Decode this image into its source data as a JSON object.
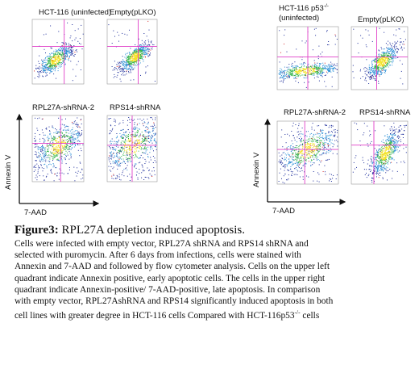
{
  "left_figure": {
    "panels": [
      "HCT-116 (uninfected)",
      "Empty(pLKO)",
      "RPL27A-shRNA-2",
      "RPS14-shRNA"
    ],
    "y_axis": "Annexin V",
    "x_axis": "7-AAD"
  },
  "right_figure": {
    "first_panel": {
      "main": "HCT-116 p53",
      "sup": "-/-",
      "rest": "(uninfected)"
    },
    "panels": [
      "Empty(pLKO)",
      "RPL27A-shRNA-2",
      "RPS14-shRNA"
    ],
    "y_axis": "Annexin V",
    "x_axis": "7-AAD"
  },
  "caption": {
    "label": "Figure3:",
    "title": " RPL27A depletion induced apoptosis.",
    "lines": [
      "Cells were infected with empty vector, RPL27A shRNA and RPS14 shRNA and",
      "selected with puromycin. After 6 days from infections, cells were stained with",
      "Annexin and 7-AAD and followed by flow cytometer analysis. Cells on the upper left",
      "quadrant indicate Annexin positive, early apoptotic cells. The cells in the upper right",
      "quadrant indicate Annexin-positive/ 7-AAD-positive, late apoptosis. In comparison",
      "with empty vector, RPL27AshRNA and RPS14 significantly induced apoptosis in both"
    ],
    "last_line": {
      "main": "cell lines with greater degree in HCT-116 cells Compared with HCT-116p53",
      "sup": "-/-",
      "rest": " cells"
    }
  }
}
